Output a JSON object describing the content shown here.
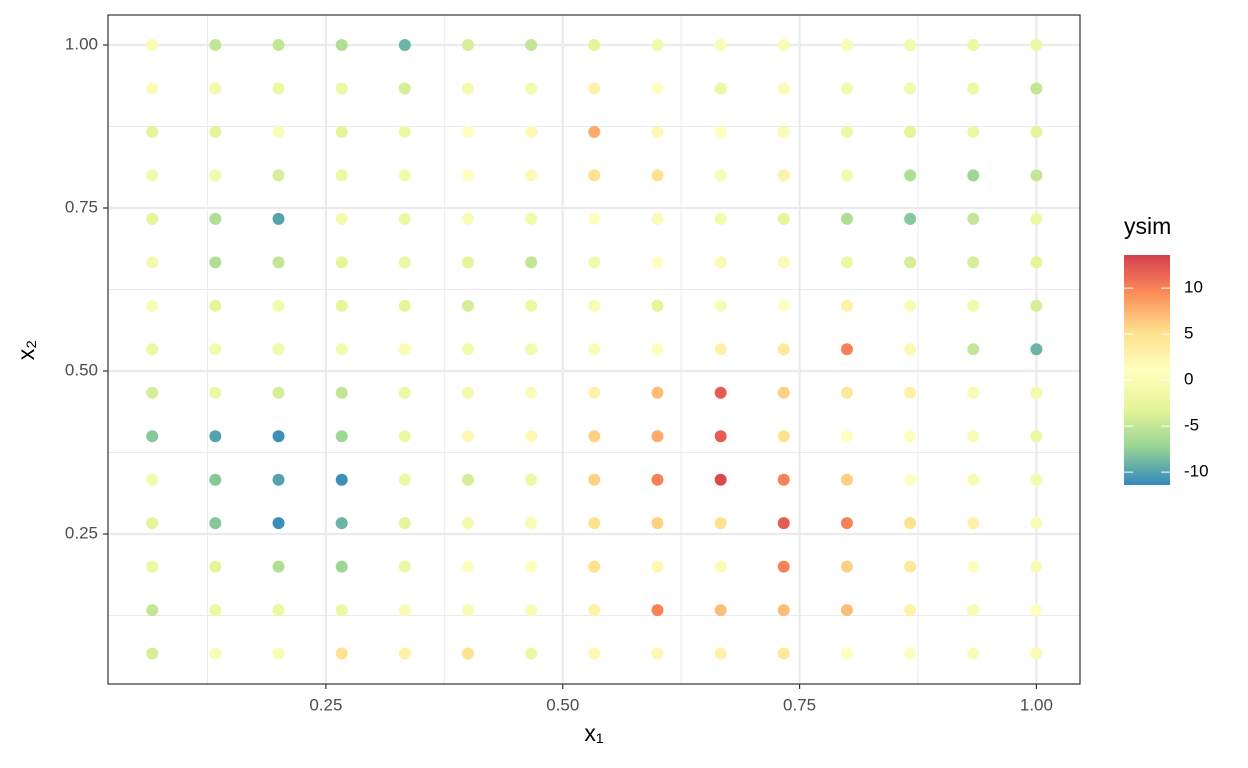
{
  "chart_data": {
    "type": "scatter",
    "xlabel": "x₁",
    "ylabel": "x₂",
    "legend_title": "ysim",
    "x": [
      0.0667,
      0.1333,
      0.2,
      0.2667,
      0.3333,
      0.4,
      0.4667,
      0.5333,
      0.6,
      0.6667,
      0.7333,
      0.8,
      0.8667,
      0.9333,
      1.0
    ],
    "y": [
      1.0,
      0.9333,
      0.8667,
      0.8,
      0.7333,
      0.6667,
      0.6,
      0.5333,
      0.4667,
      0.4,
      0.3333,
      0.2667,
      0.2,
      0.1333,
      0.0667
    ],
    "ysim": [
      [
        0,
        -5,
        -5,
        -6,
        -9,
        -4,
        -5,
        -3,
        -1,
        0,
        0,
        0,
        -1,
        -2,
        -2
      ],
      [
        0,
        -1,
        -2,
        -2,
        -4,
        -1,
        -1,
        3,
        1,
        -2,
        0,
        -1,
        -1,
        -2,
        -5
      ],
      [
        -3,
        -3,
        0,
        -3,
        -2,
        1,
        2,
        8,
        2,
        1,
        0,
        -2,
        -3,
        -2,
        -3
      ],
      [
        -1,
        -1,
        -4,
        -2,
        -1,
        1,
        2,
        5,
        5,
        0,
        3,
        -1,
        -6,
        -7,
        -5
      ],
      [
        -3,
        -6,
        -10,
        -1,
        -2,
        0,
        -1,
        1,
        0,
        -1,
        -3,
        -6,
        -8,
        -5,
        -2
      ],
      [
        -1,
        -6,
        -5,
        -3,
        -2,
        -3,
        -5,
        -1,
        1,
        0,
        0,
        -2,
        -4,
        -4,
        -3
      ],
      [
        0,
        -3,
        -1,
        -3,
        -3,
        -4,
        -2,
        0,
        -3,
        0,
        1,
        3,
        0,
        -1,
        -4
      ],
      [
        -2,
        -1,
        -1,
        -1,
        0,
        -1,
        -1,
        0,
        1,
        3,
        4,
        10,
        2,
        -5,
        -9
      ],
      [
        -4,
        -2,
        -4,
        -5,
        -2,
        -1,
        0,
        3,
        7,
        12,
        6,
        4,
        3,
        0,
        -1
      ],
      [
        -8,
        -10,
        -11,
        -7,
        -2,
        2,
        2,
        6,
        8,
        12,
        5,
        1,
        1,
        0,
        -2
      ],
      [
        -1,
        -8,
        -10,
        -11,
        -2,
        -4,
        -2,
        6,
        10,
        13,
        10,
        6,
        1,
        0,
        -1
      ],
      [
        -3,
        -8,
        -11,
        -9,
        -3,
        -1,
        0,
        5,
        6,
        5,
        12,
        10,
        5,
        3,
        0
      ],
      [
        -2,
        -3,
        -6,
        -7,
        -2,
        1,
        1,
        5,
        2,
        0,
        10,
        6,
        4,
        1,
        0
      ],
      [
        -5,
        -2,
        -2,
        -2,
        0,
        0,
        0,
        3,
        10,
        7,
        7,
        7,
        3,
        0,
        1
      ],
      [
        -4,
        0,
        0,
        5,
        3,
        5,
        -2,
        2,
        2,
        3,
        4,
        1,
        1,
        0,
        0
      ]
    ],
    "xlim": [
      0.02,
      1.046
    ],
    "ylim": [
      0.02,
      1.046
    ],
    "xticks": [
      {
        "value": 0.25,
        "label": "0.25"
      },
      {
        "value": 0.5,
        "label": "0.50"
      },
      {
        "value": 0.75,
        "label": "0.75"
      },
      {
        "value": 1,
        "label": "1.00"
      }
    ],
    "yticks": [
      {
        "value": 0.25,
        "label": "0.25"
      },
      {
        "value": 0.5,
        "label": "0.50"
      },
      {
        "value": 0.75,
        "label": "0.75"
      },
      {
        "value": 1,
        "label": "1.00"
      }
    ],
    "xminorticks": [
      0.125,
      0.375,
      0.625,
      0.875
    ],
    "yminorticks": [
      0.125,
      0.375,
      0.625,
      0.875
    ],
    "grid": true,
    "clim": [
      -11.4,
      13.6
    ],
    "colorbar_ticks": [
      -10,
      -5,
      0,
      5,
      10
    ],
    "palette": [
      "#3288BD",
      "#99D594",
      "#E6F598",
      "#FFFFBF",
      "#FEE08B",
      "#FC8D59",
      "#D53E4F"
    ]
  }
}
